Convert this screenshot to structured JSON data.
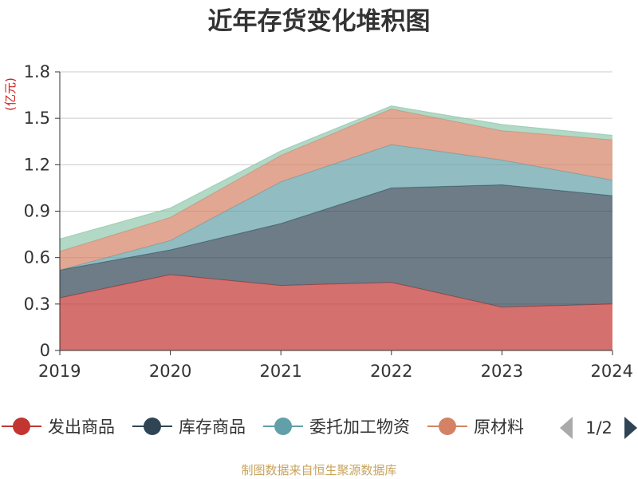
{
  "chart_data": {
    "type": "area",
    "title": "近年存货变化堆积图",
    "unit_label": "(亿元)",
    "x": [
      "2019",
      "2020",
      "2021",
      "2022",
      "2023",
      "2024"
    ],
    "ylim": [
      0,
      1.8
    ],
    "yticks": [
      "0",
      "0.3",
      "0.6",
      "0.9",
      "1.2",
      "1.5",
      "1.8"
    ],
    "grid": true,
    "stacked": true,
    "legend_position": "bottom",
    "series": [
      {
        "name": "发出商品",
        "color": "#c23531",
        "values": [
          0.34,
          0.49,
          0.42,
          0.44,
          0.28,
          0.3
        ]
      },
      {
        "name": "库存商品",
        "color": "#2f4554",
        "values": [
          0.18,
          0.16,
          0.4,
          0.61,
          0.79,
          0.7
        ]
      },
      {
        "name": "委托加工物资",
        "color": "#61a0a8",
        "values": [
          0.0,
          0.06,
          0.27,
          0.28,
          0.16,
          0.1
        ]
      },
      {
        "name": "原材料",
        "color": "#d48265",
        "values": [
          0.12,
          0.15,
          0.17,
          0.23,
          0.19,
          0.26
        ]
      },
      {
        "name": "",
        "color": "#91c7ae",
        "values": [
          0.08,
          0.06,
          0.03,
          0.02,
          0.04,
          0.03
        ]
      }
    ]
  },
  "legend": {
    "items": [
      {
        "label": "发出商品",
        "color": "#c23531"
      },
      {
        "label": "库存商品",
        "color": "#2f4554"
      },
      {
        "label": "委托加工物资",
        "color": "#61a0a8"
      },
      {
        "label": "原材料",
        "color": "#d48265"
      }
    ],
    "page": "1/2",
    "prev_icon": "triangle-left-icon",
    "next_icon": "triangle-right-icon"
  },
  "source": "制图数据来自恒生聚源数据库"
}
